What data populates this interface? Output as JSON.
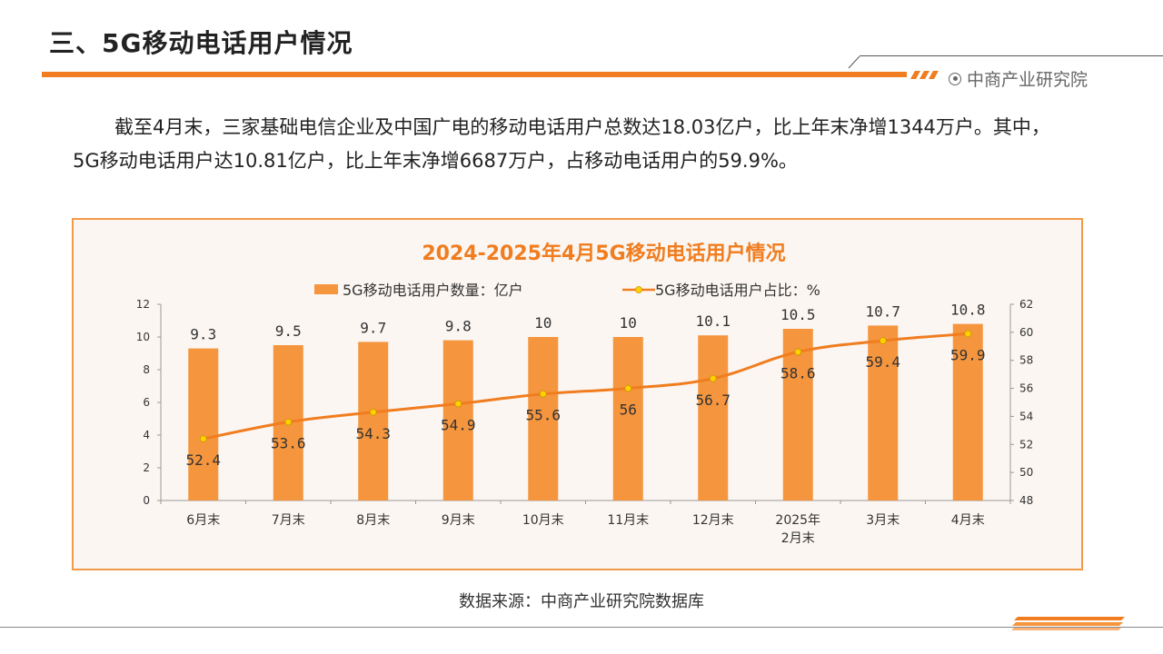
{
  "header": {
    "title": "三、5G移动电话用户情况",
    "brand": "中商产业研究院"
  },
  "summary": "截至4月末，三家基础电信企业及中国广电的移动电话用户总数达18.03亿户，比上年末净增1344万户。其中，5G移动电话用户达10.81亿户，比上年末净增6687万户，占移动电话用户的59.9%。",
  "colors": {
    "accent": "#f07d1f",
    "bar": "#f5953e",
    "line": "#f07d1f",
    "marker": "#ffd000",
    "panel_border": "#f29a4a",
    "panel_bg": "#fbf6f2"
  },
  "chart_data": {
    "type": "bar",
    "title": "2024-2025年4月5G移动电话用户情况",
    "categories": [
      "6月末",
      "7月末",
      "8月末",
      "9月末",
      "10月末",
      "11月末",
      "12月末",
      "2025年\n2月末",
      "3月末",
      "4月末"
    ],
    "series": [
      {
        "name": "5G移动电话用户数量：亿户",
        "type": "bar",
        "axis": "left",
        "values": [
          9.3,
          9.5,
          9.7,
          9.8,
          10,
          10,
          10.1,
          10.5,
          10.7,
          10.8
        ],
        "labels": [
          "9.3",
          "9.5",
          "9.7",
          "9.8",
          "10",
          "10",
          "10.1",
          "10.5",
          "10.7",
          "10.8"
        ]
      },
      {
        "name": "5G移动电话用户占比：%",
        "type": "line",
        "axis": "right",
        "values": [
          52.4,
          53.6,
          54.3,
          54.9,
          55.6,
          56,
          56.7,
          58.6,
          59.4,
          59.9
        ],
        "labels": [
          "52.4",
          "53.6",
          "54.3",
          "54.9",
          "55.6",
          "56",
          "56.7",
          "58.6",
          "59.4",
          "59.9"
        ]
      }
    ],
    "y_left": {
      "min": 0,
      "max": 12,
      "ticks": [
        "0",
        "2",
        "4",
        "6",
        "8",
        "10",
        "12"
      ]
    },
    "y_right": {
      "min": 48,
      "max": 62,
      "ticks": [
        "48",
        "50",
        "52",
        "54",
        "56",
        "58",
        "60",
        "62"
      ]
    },
    "legend_position": "top",
    "grid": false
  },
  "source": "数据来源：中商产业研究院数据库"
}
